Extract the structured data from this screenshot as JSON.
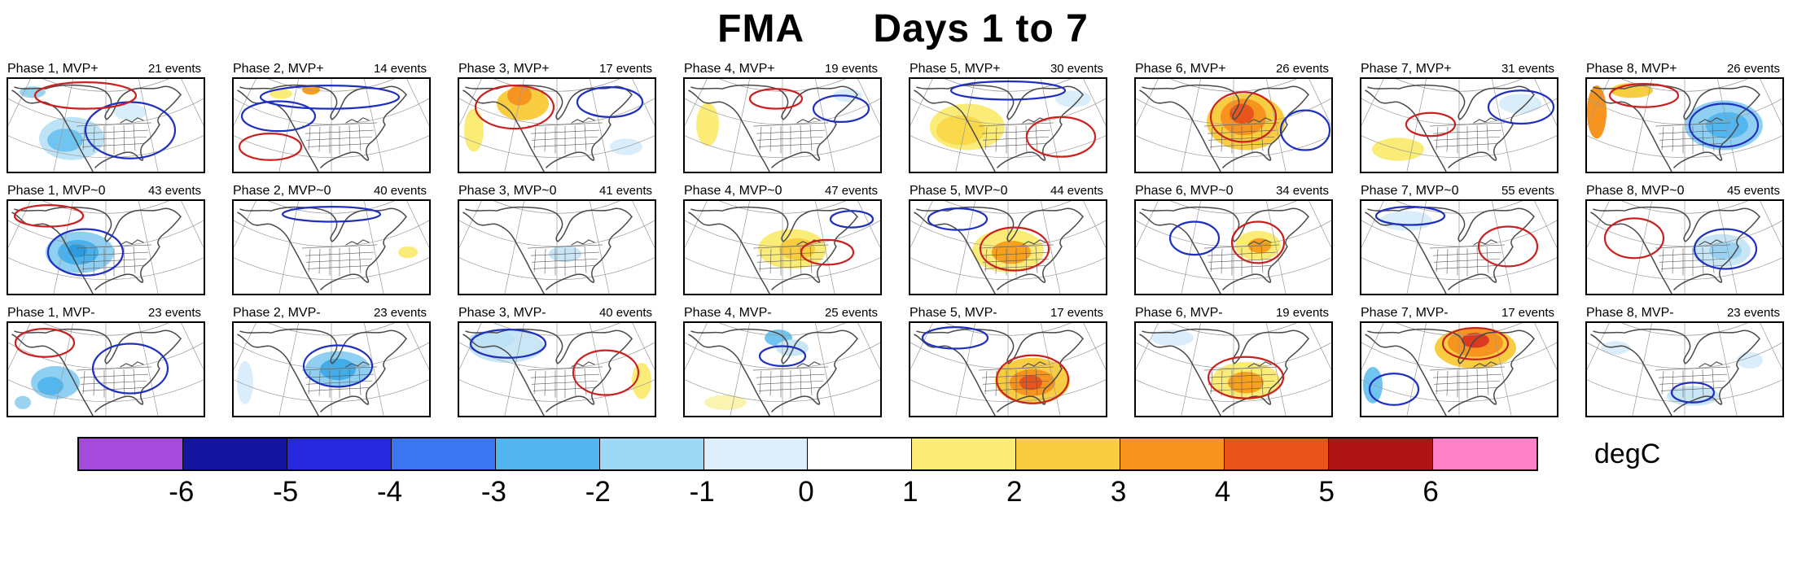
{
  "title": "FMA      Days 1 to 7",
  "colorbar": {
    "label": "degC",
    "ticks": [
      "-6",
      "-5",
      "-4",
      "-3",
      "-2",
      "-1",
      "0",
      "1",
      "2",
      "3",
      "4",
      "5",
      "6"
    ],
    "colors": [
      "#A54BDB",
      "#14149E",
      "#2727DE",
      "#3B76F0",
      "#52B5F0",
      "#9ED8F5",
      "#DCEFFA",
      "#FFFFFF",
      "#FBEC77",
      "#F9CD41",
      "#F79420",
      "#E8541A",
      "#B01313",
      "#FF82C8"
    ]
  },
  "map_style": {
    "land": "#4a4a4a",
    "graticule": "#9a9a9a",
    "warm_contour": "#C92020",
    "cold_contour": "#2030BE"
  },
  "chart_data": {
    "type": "heatmap",
    "title": "FMA Days 1 to 7",
    "row_labels": [
      "MVP+",
      "MVP~0",
      "MVP-"
    ],
    "col_labels": [
      "Phase 1",
      "Phase 2",
      "Phase 3",
      "Phase 4",
      "Phase 5",
      "Phase 6",
      "Phase 7",
      "Phase 8"
    ],
    "events_per_panel": [
      [
        21,
        14,
        17,
        19,
        30,
        26,
        31,
        26
      ],
      [
        43,
        40,
        41,
        47,
        44,
        34,
        55,
        45
      ],
      [
        23,
        23,
        40,
        25,
        17,
        19,
        17,
        23
      ]
    ],
    "colorbar_ticks": [
      -6,
      -5,
      -4,
      -3,
      -2,
      -1,
      0,
      1,
      2,
      3,
      4,
      5,
      6
    ],
    "units": "degC"
  },
  "rows": [
    {
      "regime": "MVP+",
      "panels": [
        {
          "title": "Phase 1, MVP+",
          "events": "21 events",
          "b": [
            [
              78,
              72,
              40,
              26,
              "#BEE3F6"
            ],
            [
              70,
              74,
              22,
              14,
              "#6FC5F0"
            ],
            [
              30,
              16,
              16,
              7,
              "#9AD2F0"
            ],
            [
              150,
              40,
              20,
              10,
              "#D9EDFA"
            ]
          ],
          "c": [
            [
              150,
              62,
              55,
              34,
              "b"
            ],
            [
              95,
              20,
              62,
              16,
              "r"
            ]
          ]
        },
        {
          "title": "Phase 2, MVP+",
          "events": "14 events",
          "b": [
            [
              95,
              13,
              11,
              6,
              "#F8A01D"
            ],
            [
              58,
              18,
              14,
              6,
              "#FBEC77"
            ]
          ],
          "c": [
            [
              118,
              22,
              85,
              14,
              "b"
            ],
            [
              55,
              45,
              45,
              18,
              "b"
            ],
            [
              45,
              82,
              38,
              16,
              "r"
            ]
          ]
        },
        {
          "title": "Phase 3, MVP+",
          "events": "17 events",
          "b": [
            [
              78,
              30,
              32,
              20,
              "#F9CD41"
            ],
            [
              74,
              20,
              15,
              12,
              "#F79420"
            ],
            [
              18,
              62,
              12,
              26,
              "#FBEC77"
            ],
            [
              205,
              82,
              20,
              10,
              "#D9EDFA"
            ]
          ],
          "c": [
            [
              68,
              34,
              48,
              26,
              "r"
            ],
            [
              185,
              28,
              40,
              18,
              "b"
            ]
          ]
        },
        {
          "title": "Phase 4, MVP+",
          "events": "19 events",
          "b": [
            [
              28,
              55,
              14,
              26,
              "#FBEC77"
            ],
            [
              200,
              20,
              18,
              8,
              "#D9EDFA"
            ]
          ],
          "c": [
            [
              112,
              24,
              32,
              12,
              "r"
            ],
            [
              192,
              36,
              34,
              16,
              "b"
            ]
          ]
        },
        {
          "title": "Phase 5, MVP+",
          "events": "30 events",
          "b": [
            [
              70,
              58,
              46,
              28,
              "#FBEC77"
            ],
            [
              62,
              62,
              30,
              18,
              "#F9D949"
            ],
            [
              200,
              24,
              22,
              10,
              "#D9EDFA"
            ]
          ],
          "c": [
            [
              120,
              14,
              70,
              11,
              "b"
            ],
            [
              185,
              70,
              42,
              24,
              "r"
            ]
          ]
        },
        {
          "title": "Phase 6, MVP+",
          "events": "26 events",
          "b": [
            [
              135,
              52,
              48,
              34,
              "#F9CD41"
            ],
            [
              132,
              46,
              28,
              22,
              "#F79420"
            ],
            [
              130,
              42,
              15,
              12,
              "#E8541A"
            ]
          ],
          "c": [
            [
              132,
              46,
              40,
              30,
              "r"
            ],
            [
              208,
              62,
              30,
              24,
              "b"
            ]
          ]
        },
        {
          "title": "Phase 7, MVP+",
          "events": "31 events",
          "b": [
            [
              45,
              85,
              32,
              14,
              "#FBEC77"
            ],
            [
              195,
              30,
              26,
              12,
              "#D9EDFA"
            ]
          ],
          "c": [
            [
              196,
              34,
              40,
              20,
              "b"
            ],
            [
              85,
              55,
              30,
              14,
              "r"
            ]
          ]
        },
        {
          "title": "Phase 8, MVP+",
          "events": "26 events",
          "b": [
            [
              12,
              40,
              12,
              32,
              "#F79420"
            ],
            [
              55,
              14,
              26,
              9,
              "#F9CD41"
            ],
            [
              168,
              56,
              48,
              30,
              "#8FD0F2"
            ],
            [
              172,
              56,
              26,
              16,
              "#54B6EE"
            ]
          ],
          "c": [
            [
              168,
              56,
              42,
              26,
              "b"
            ],
            [
              70,
              20,
              42,
              14,
              "r"
            ]
          ]
        }
      ]
    },
    {
      "regime": "MVP~0",
      "panels": [
        {
          "title": "Phase 1, MVP~0",
          "events": "43 events",
          "b": [
            [
              88,
              62,
              42,
              25,
              "#8FD0F2"
            ],
            [
              86,
              62,
              25,
              15,
              "#49B2EC"
            ],
            [
              85,
              60,
              12,
              8,
              "#2E9BE0"
            ]
          ],
          "c": [
            [
              95,
              62,
              46,
              28,
              "b"
            ],
            [
              50,
              18,
              42,
              13,
              "r"
            ]
          ]
        },
        {
          "title": "Phase 2, MVP~0",
          "events": "40 events",
          "b": [
            [
              214,
              62,
              12,
              7,
              "#FBEC77"
            ]
          ],
          "c": [
            [
              120,
              16,
              60,
              9,
              "b"
            ]
          ]
        },
        {
          "title": "Phase 3, MVP~0",
          "events": "41 events",
          "b": [
            [
              130,
              64,
              20,
              10,
              "#C9E6F7"
            ]
          ],
          "c": []
        },
        {
          "title": "Phase 4, MVP~0",
          "events": "47 events",
          "b": [
            [
              132,
              58,
              42,
              24,
              "#FBEC77"
            ],
            [
              138,
              58,
              22,
              13,
              "#F9CD41"
            ]
          ],
          "c": [
            [
              175,
              62,
              32,
              15,
              "r"
            ],
            [
              205,
              22,
              26,
              10,
              "b"
            ]
          ]
        },
        {
          "title": "Phase 5, MVP~0",
          "events": "44 events",
          "b": [
            [
              120,
              60,
              44,
              26,
              "#FBEC77"
            ],
            [
              124,
              62,
              24,
              14,
              "#F9A01D"
            ]
          ],
          "c": [
            [
              128,
              58,
              42,
              26,
              "r"
            ],
            [
              58,
              22,
              36,
              13,
              "b"
            ]
          ]
        },
        {
          "title": "Phase 6, MVP~0",
          "events": "34 events",
          "b": [
            [
              150,
              54,
              28,
              18,
              "#FBEC77"
            ],
            [
              152,
              54,
              14,
              9,
              "#F9A01D"
            ]
          ],
          "c": [
            [
              150,
              50,
              32,
              25,
              "r"
            ],
            [
              72,
              45,
              30,
              20,
              "b"
            ]
          ]
        },
        {
          "title": "Phase 7, MVP~0",
          "events": "55 events",
          "b": [
            [
              55,
              24,
              32,
              12,
              "#D9EDFA"
            ]
          ],
          "c": [
            [
              180,
              55,
              36,
              24,
              "r"
            ],
            [
              60,
              18,
              42,
              11,
              "b"
            ]
          ]
        },
        {
          "title": "Phase 8, MVP~0",
          "events": "45 events",
          "b": [
            [
              165,
              60,
              36,
              20,
              "#C9E6F7"
            ],
            [
              170,
              60,
              20,
              11,
              "#9AD2F0"
            ]
          ],
          "c": [
            [
              170,
              58,
              38,
              24,
              "b"
            ],
            [
              58,
              45,
              36,
              24,
              "r"
            ]
          ]
        }
      ]
    },
    {
      "regime": "MVP-",
      "panels": [
        {
          "title": "Phase 1, MVP-",
          "events": "23 events",
          "b": [
            [
              58,
              72,
              30,
              20,
              "#8FD0F2"
            ],
            [
              52,
              76,
              16,
              11,
              "#54B6EE"
            ],
            [
              18,
              96,
              10,
              8,
              "#9AD2F0"
            ]
          ],
          "c": [
            [
              45,
              24,
              36,
              17,
              "r"
            ],
            [
              150,
              55,
              46,
              30,
              "b"
            ]
          ]
        },
        {
          "title": "Phase 2, MVP-",
          "events": "23 events",
          "b": [
            [
              128,
              56,
              40,
              22,
              "#8FD0F2"
            ],
            [
              128,
              56,
              22,
              13,
              "#41ACEA"
            ],
            [
              14,
              72,
              10,
              26,
              "#D9EDFA"
            ]
          ],
          "c": [
            [
              128,
              52,
              42,
              25,
              "b"
            ]
          ]
        },
        {
          "title": "Phase 3, MVP-",
          "events": "40 events",
          "b": [
            [
              58,
              28,
              46,
              20,
              "#C9E6F7"
            ],
            [
              40,
              20,
              28,
              11,
              "#BEE3F6"
            ],
            [
              224,
              70,
              12,
              22,
              "#FBEC77"
            ]
          ],
          "c": [
            [
              60,
              25,
              46,
              17,
              "b"
            ],
            [
              180,
              60,
              40,
              27,
              "r"
            ]
          ]
        },
        {
          "title": "Phase 4, MVP-",
          "events": "25 events",
          "b": [
            [
              115,
              18,
              17,
              10,
              "#6FC5F0"
            ],
            [
              132,
              30,
              20,
              10,
              "#C9E6F7"
            ],
            [
              50,
              96,
              26,
              9,
              "#FBF3B0"
            ]
          ],
          "c": [
            [
              120,
              40,
              28,
              12,
              "b"
            ]
          ]
        },
        {
          "title": "Phase 5, MVP-",
          "events": "17 events",
          "b": [
            [
              150,
              70,
              46,
              28,
              "#F9CD41"
            ],
            [
              150,
              72,
              28,
              16,
              "#F79420"
            ],
            [
              148,
              72,
              14,
              9,
              "#E8541A"
            ]
          ],
          "c": [
            [
              150,
              68,
              44,
              29,
              "r"
            ],
            [
              55,
              18,
              40,
              13,
              "b"
            ]
          ]
        },
        {
          "title": "Phase 6, MVP-",
          "events": "19 events",
          "b": [
            [
              135,
              70,
              42,
              23,
              "#FBEC77"
            ],
            [
              135,
              72,
              22,
              13,
              "#F9A01D"
            ],
            [
              45,
              18,
              26,
              10,
              "#D9EDFA"
            ]
          ],
          "c": [
            [
              135,
              66,
              46,
              25,
              "r"
            ]
          ]
        },
        {
          "title": "Phase 7, MVP-",
          "events": "17 events",
          "b": [
            [
              140,
              30,
              50,
              25,
              "#F9CD41"
            ],
            [
              140,
              24,
              34,
              17,
              "#F79420"
            ],
            [
              140,
              21,
              17,
              9,
              "#D93A20"
            ],
            [
              14,
              75,
              12,
              22,
              "#6FC5F0"
            ]
          ],
          "c": [
            [
              140,
              25,
              40,
              19,
              "r"
            ],
            [
              40,
              80,
              30,
              19,
              "b"
            ]
          ]
        },
        {
          "title": "Phase 8, MVP-",
          "events": "23 events",
          "b": [
            [
              130,
              88,
              32,
              12,
              "#C9E6F7"
            ],
            [
              200,
              45,
              16,
              10,
              "#D9EDFA"
            ],
            [
              35,
              30,
              18,
              8,
              "#D9EDFA"
            ]
          ],
          "c": [
            [
              130,
              84,
              26,
              12,
              "b"
            ]
          ]
        }
      ]
    }
  ]
}
